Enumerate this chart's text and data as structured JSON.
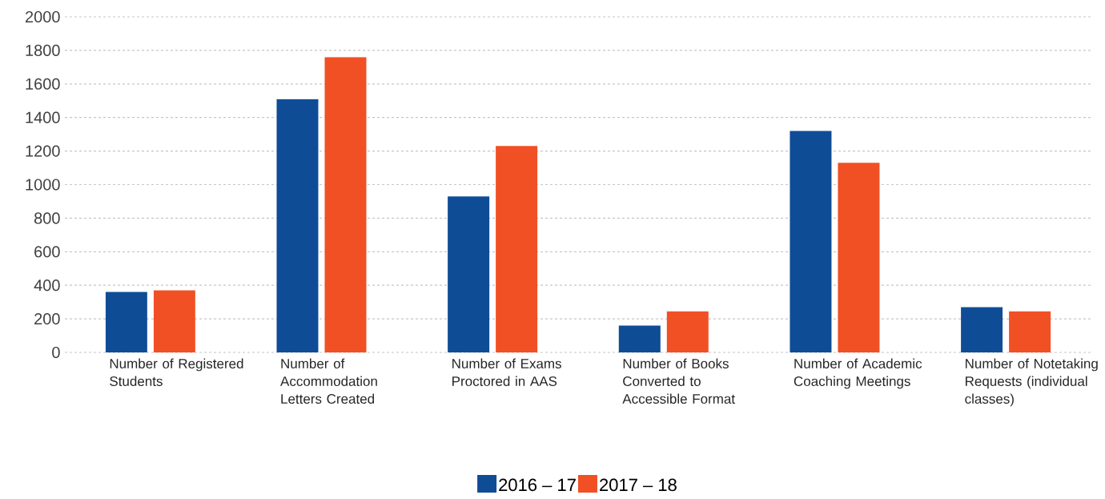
{
  "chart_data": {
    "type": "bar",
    "categories": [
      "Number of Registered Students",
      "Number of Accommodation Letters Created",
      "Number of Exams Proctored in AAS",
      "Number of Books Converted to Accessible Format",
      "Number of Academic Coaching Meetings",
      "Number of Notetaking Requests (individual classes)"
    ],
    "series": [
      {
        "name": "2016 – 17",
        "color": "#0f4c96",
        "values": [
          360,
          1510,
          930,
          160,
          1320,
          270
        ]
      },
      {
        "name": "2017 – 18",
        "color": "#f15025",
        "values": [
          370,
          1760,
          1230,
          245,
          1130,
          245
        ]
      }
    ],
    "ylim": [
      0,
      2000
    ],
    "yticks": [
      0,
      200,
      400,
      600,
      800,
      1000,
      1200,
      1400,
      1600,
      1800,
      2000
    ],
    "grid": "y",
    "legend": "bottom"
  }
}
